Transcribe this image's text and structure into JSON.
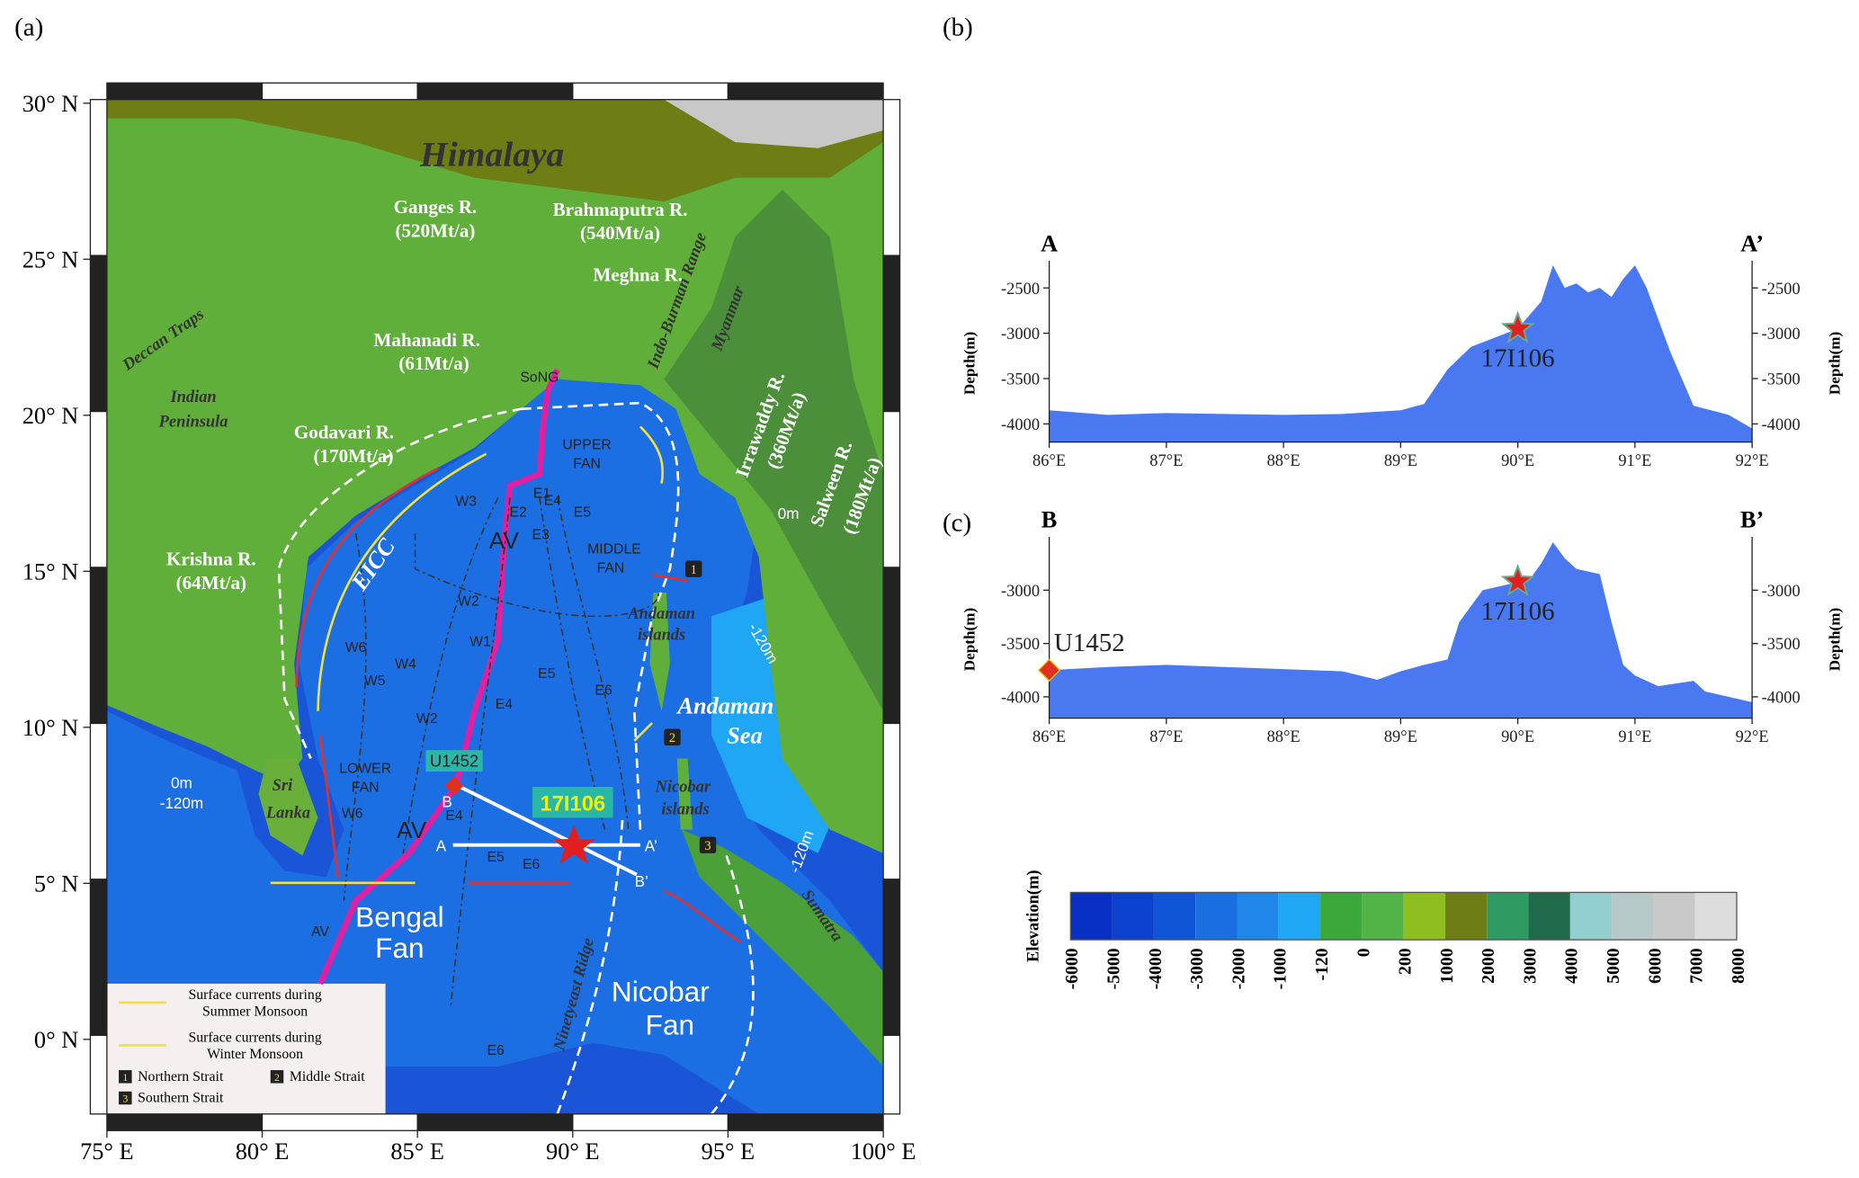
{
  "panels": {
    "a": "(a)",
    "b": "(b)",
    "c": "(c)"
  },
  "map": {
    "xticks": [
      {
        "value": 75,
        "label": "75° E"
      },
      {
        "value": 80,
        "label": "80° E"
      },
      {
        "value": 85,
        "label": "85° E"
      },
      {
        "value": 90,
        "label": "90° E"
      },
      {
        "value": 95,
        "label": "95° E"
      },
      {
        "value": 100,
        "label": "100° E"
      }
    ],
    "yticks": [
      {
        "value": 0,
        "label": "0° N"
      },
      {
        "value": 5,
        "label": "5° N"
      },
      {
        "value": 10,
        "label": "10° N"
      },
      {
        "value": 15,
        "label": "15° N"
      },
      {
        "value": 20,
        "label": "20° N"
      },
      {
        "value": 25,
        "label": "25° N"
      },
      {
        "value": 30,
        "label": "30° N"
      }
    ],
    "labels": [
      "Himalaya",
      "Ganges R.",
      "(520Mt/a)",
      "Brahmaputra R.",
      "(540Mt/a)",
      "Meghna R.",
      "Mahanadi R.",
      "(61Mt/a)",
      "Deccan Traps",
      "Indian",
      "Peninsula",
      "Godavari R.",
      "(170Mt/a)",
      "Krishna R.",
      "(64Mt/a)",
      "SoNG",
      "Indo-Burman Range",
      "Myanmar",
      "Irrawaddy R.",
      "(360Mt/a)",
      "Salween R.",
      "(180Mt/a)",
      "UPPER",
      "FAN",
      "MIDDLE",
      "FAN",
      "EICC",
      "AV",
      "AV",
      "AV",
      "Andaman",
      "islands",
      "Andaman",
      "Sea",
      "Nicobar",
      "islands",
      "Sri",
      "Lanka",
      "LOWER",
      "FAN",
      "Bengal",
      "Fan",
      "Nicobar",
      "Fan",
      "Ninetyeast Ridge",
      "Sumatra",
      "0m",
      "-120m",
      "0m",
      "-120m",
      "-120m",
      "W1",
      "W2",
      "W3",
      "W4",
      "W5",
      "W6",
      "W6",
      "W2",
      "E1",
      "E2",
      "E3",
      "E4",
      "E5",
      "E5",
      "E6",
      "E4",
      "E4",
      "E5",
      "E6",
      "E6",
      "A",
      "A’",
      "B",
      "B’"
    ],
    "sites": [
      "U1452",
      "17I106"
    ],
    "straits": [
      "1",
      "2",
      "3"
    ],
    "legend": {
      "summer": [
        "Surface currents during",
        "Summer Monsoon"
      ],
      "winter": [
        "Surface currents during",
        "Winter Monsoon"
      ],
      "straits": [
        {
          "number": "1",
          "name": "Northern Strait"
        },
        {
          "number": "2",
          "name": "Middle Strait"
        },
        {
          "number": "3",
          "name": "Southern Strait"
        }
      ]
    }
  },
  "colorbar": {
    "title": "Elevation(m)",
    "colors": [
      "#0a2fc4",
      "#0b41cf",
      "#0f55d6",
      "#1a6ee0",
      "#1f87ea",
      "#1fa6f5",
      "#3aa83a",
      "#52b347",
      "#8fbf1e",
      "#6e7d14",
      "#2e9b63",
      "#1f6a4a",
      "#94cfcf",
      "#b7c8c8",
      "#c8c8c8",
      "#dcdcdc"
    ],
    "ticks": [
      -6000,
      -5000,
      -4000,
      -3000,
      -2000,
      -1000,
      -120,
      0,
      200,
      1000,
      2000,
      3000,
      4000,
      5000,
      6000,
      7000,
      8000
    ]
  },
  "chart_data": [
    {
      "type": "area",
      "start_label": "A",
      "end_label": "A’",
      "ylabel": "Depth(m)",
      "y2label": "Depth(m)",
      "color": "#4a78f0",
      "x": [
        86,
        86.5,
        87,
        87.5,
        88,
        88.5,
        89,
        89.2,
        89.4,
        89.6,
        89.8,
        90,
        90.2,
        90.3,
        90.4,
        90.5,
        90.6,
        90.7,
        90.8,
        90.9,
        91,
        91.1,
        91.3,
        91.5,
        91.8,
        92
      ],
      "values": [
        -3850,
        -3900,
        -3880,
        -3890,
        -3900,
        -3890,
        -3850,
        -3780,
        -3400,
        -3150,
        -3050,
        -2950,
        -2650,
        -2250,
        -2500,
        -2450,
        -2550,
        -2500,
        -2600,
        -2400,
        -2250,
        -2500,
        -3200,
        -3800,
        -3900,
        -4050
      ],
      "xlim": [
        86,
        92
      ],
      "xticks": [
        {
          "value": 86,
          "label": "86°E"
        },
        {
          "value": 87,
          "label": "87°E"
        },
        {
          "value": 88,
          "label": "88°E"
        },
        {
          "value": 89,
          "label": "89°E"
        },
        {
          "value": 90,
          "label": "90°E"
        },
        {
          "value": 91,
          "label": "91°E"
        },
        {
          "value": 92,
          "label": "92°E"
        }
      ],
      "ylim": [
        -4200,
        -2200
      ],
      "yticks": [
        -4000,
        -3500,
        -3000,
        -2500
      ],
      "y2lim": [
        -4200,
        -2200
      ],
      "y2ticks": [
        -4000,
        -3500,
        -3000,
        -2500
      ],
      "markers": [
        {
          "name": "17I106",
          "x": 90,
          "y": -2950,
          "shape": "star"
        }
      ]
    },
    {
      "type": "area",
      "start_label": "B",
      "end_label": "B’",
      "ylabel": "Depth(m)",
      "y2label": "Depth(m)",
      "color": "#4a78f0",
      "x": [
        86,
        86.5,
        87,
        87.5,
        88,
        88.5,
        88.8,
        89,
        89.2,
        89.4,
        89.5,
        89.7,
        89.9,
        90.1,
        90.2,
        90.3,
        90.4,
        90.5,
        90.7,
        90.8,
        90.9,
        91,
        91.2,
        91.5,
        91.6,
        92
      ],
      "values": [
        -3750,
        -3720,
        -3700,
        -3720,
        -3740,
        -3760,
        -3840,
        -3760,
        -3700,
        -3650,
        -3300,
        -3000,
        -2950,
        -2900,
        -2750,
        -2550,
        -2700,
        -2800,
        -2850,
        -3300,
        -3700,
        -3800,
        -3900,
        -3850,
        -3950,
        -4050
      ],
      "xlim": [
        86,
        92
      ],
      "xticks": [
        {
          "value": 86,
          "label": "86°E"
        },
        {
          "value": 87,
          "label": "87°E"
        },
        {
          "value": 88,
          "label": "88°E"
        },
        {
          "value": 89,
          "label": "89°E"
        },
        {
          "value": 90,
          "label": "90°E"
        },
        {
          "value": 91,
          "label": "91°E"
        },
        {
          "value": 92,
          "label": "92°E"
        }
      ],
      "ylim": [
        -4200,
        -2500
      ],
      "yticks": [
        -4000,
        -3500,
        -3000
      ],
      "y2lim": [
        -4200,
        -2500
      ],
      "y2ticks": [
        -4000,
        -3500,
        -3000
      ],
      "markers": [
        {
          "name": "17I106",
          "x": 90,
          "y": -2920,
          "shape": "star"
        },
        {
          "name": "U1452",
          "x": 86,
          "y": -3750,
          "shape": "diamond"
        }
      ]
    }
  ]
}
